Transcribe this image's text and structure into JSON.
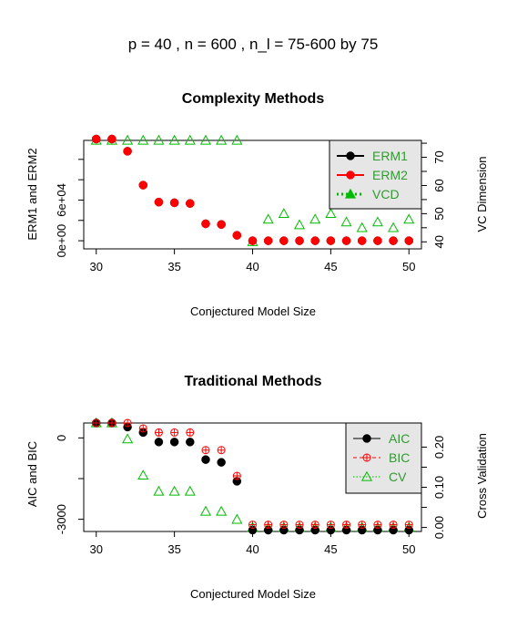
{
  "page_title": "p =  40 ,  n =  600 , n_l =  75-600 by 75",
  "chart_data": [
    {
      "type": "scatter",
      "title": "Complexity Methods",
      "xlabel": "Conjectured Model Size",
      "ylabel": "ERM1 and ERM2",
      "y2label": "VC Dimension",
      "x": [
        30,
        31,
        32,
        33,
        34,
        35,
        36,
        37,
        38,
        39,
        40,
        41,
        42,
        43,
        44,
        45,
        46,
        47,
        48,
        49,
        50
      ],
      "xlim": [
        29.2,
        50.8
      ],
      "xticks": [
        30,
        35,
        40,
        45,
        50
      ],
      "ylim": [
        -12000,
        148000
      ],
      "yticks": [
        0,
        30000,
        60000,
        90000,
        120000
      ],
      "ytick_labels": [
        "0e+00",
        "",
        "6e+04",
        "",
        ""
      ],
      "y2lim": [
        37.5,
        76
      ],
      "y2ticks": [
        40,
        45,
        50,
        55,
        60,
        65,
        70,
        75
      ],
      "y2tick_labels": [
        "40",
        "",
        "50",
        "",
        "60",
        "",
        "70",
        ""
      ],
      "series": [
        {
          "name": "ERM1",
          "axis": "left",
          "color": "#000000",
          "marker": "circle",
          "values": [
            150000,
            150000,
            132000,
            82000,
            57000,
            56000,
            55000,
            25000,
            24000,
            8000,
            0,
            0,
            0,
            0,
            0,
            0,
            0,
            0,
            0,
            0,
            0
          ]
        },
        {
          "name": "ERM2",
          "axis": "left",
          "color": "#ff0000",
          "marker": "circle",
          "values": [
            150000,
            150000,
            132000,
            82000,
            57000,
            56000,
            55000,
            25000,
            24000,
            8000,
            0,
            0,
            0,
            0,
            0,
            0,
            0,
            0,
            0,
            0,
            0
          ]
        },
        {
          "name": "VCD",
          "axis": "right",
          "color": "#00bb00",
          "marker": "triangle-open",
          "values": [
            76,
            76,
            76,
            76,
            76,
            76,
            76,
            76,
            76,
            76,
            40,
            48,
            50,
            46,
            48,
            50,
            47,
            45,
            47,
            45,
            48
          ]
        }
      ],
      "legend": {
        "position": "top-right",
        "labels": [
          "ERM1",
          "ERM2",
          "VCD"
        ],
        "colors": [
          "#000000",
          "#ff0000",
          "#00bb00"
        ],
        "background": "#e6e6e6"
      }
    },
    {
      "type": "scatter",
      "title": "Traditional Methods",
      "xlabel": "Conjectured Model Size",
      "ylabel": "AIC and BIC",
      "y2label": "Cross Validation",
      "x": [
        30,
        31,
        32,
        33,
        34,
        35,
        36,
        37,
        38,
        39,
        40,
        41,
        42,
        43,
        44,
        45,
        46,
        47,
        48,
        49,
        50
      ],
      "xlim": [
        29.2,
        50.8
      ],
      "xticks": [
        30,
        35,
        40,
        45,
        50
      ],
      "ylim": [
        -3450,
        550
      ],
      "yticks": [
        0,
        -1500,
        -3000
      ],
      "ytick_labels": [
        "0",
        "",
        "-3000"
      ],
      "y2lim": [
        -0.01,
        0.26
      ],
      "y2ticks": [
        0.0,
        0.05,
        0.1,
        0.15,
        0.2
      ],
      "y2tick_labels": [
        "0.00",
        "0.10",
        "0.20"
      ],
      "y2tick_label_values": [
        0.0,
        0.1,
        0.2
      ],
      "series": [
        {
          "name": "AIC",
          "axis": "left",
          "color": "#000000",
          "marker": "circle",
          "values": [
            550,
            550,
            400,
            200,
            -150,
            -150,
            -150,
            -800,
            -900,
            -1600,
            -3400,
            -3400,
            -3400,
            -3400,
            -3400,
            -3400,
            -3400,
            -3400,
            -3400,
            -3400,
            -3400
          ]
        },
        {
          "name": "BIC",
          "axis": "left",
          "color": "#ff0000",
          "marker": "circle-plus",
          "values": [
            550,
            550,
            550,
            350,
            200,
            200,
            200,
            -450,
            -450,
            -1400,
            -3200,
            -3200,
            -3200,
            -3200,
            -3200,
            -3200,
            -3200,
            -3200,
            -3200,
            -3200,
            -3200
          ]
        },
        {
          "name": "CV",
          "axis": "right",
          "color": "#00bb00",
          "marker": "triangle-open",
          "values": [
            0.26,
            0.26,
            0.22,
            0.13,
            0.09,
            0.09,
            0.09,
            0.04,
            0.04,
            0.02,
            0.0,
            0.0,
            0.0,
            0.0,
            0.0,
            0.0,
            0.0,
            0.0,
            0.0,
            0.0,
            0.0
          ]
        }
      ],
      "legend": {
        "position": "top-right",
        "labels": [
          "AIC",
          "BIC",
          "CV"
        ],
        "colors": [
          "#000000",
          "#ff0000",
          "#00bb00"
        ],
        "background": "#e6e6e6"
      }
    }
  ]
}
